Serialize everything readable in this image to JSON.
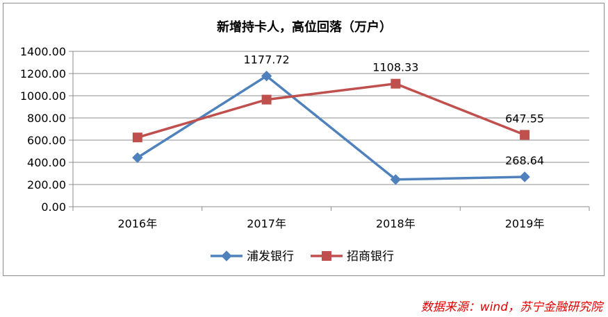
{
  "chart_data": {
    "type": "line",
    "title": "新增持卡人，高位回落（万户）",
    "categories": [
      "2016年",
      "2017年",
      "2018年",
      "2019年"
    ],
    "ylim": [
      0,
      1400
    ],
    "yticks": [
      "0.00",
      "200.00",
      "400.00",
      "600.00",
      "800.00",
      "1000.00",
      "1200.00",
      "1400.00"
    ],
    "grid": true,
    "legend_position": "bottom",
    "series": [
      {
        "name": "浦发银行",
        "color": "#4f81bd",
        "marker": "diamond",
        "values": [
          442,
          1177.72,
          245,
          268.64
        ],
        "labels": [
          "",
          "1177.72",
          "",
          "268.64"
        ]
      },
      {
        "name": "招商银行",
        "color": "#c0504d",
        "marker": "square",
        "values": [
          624,
          965,
          1108.33,
          647.55
        ],
        "labels": [
          "",
          "",
          "1108.33",
          "647.55"
        ]
      }
    ]
  },
  "source_note": "数据来源：wind，苏宁金融研究院"
}
